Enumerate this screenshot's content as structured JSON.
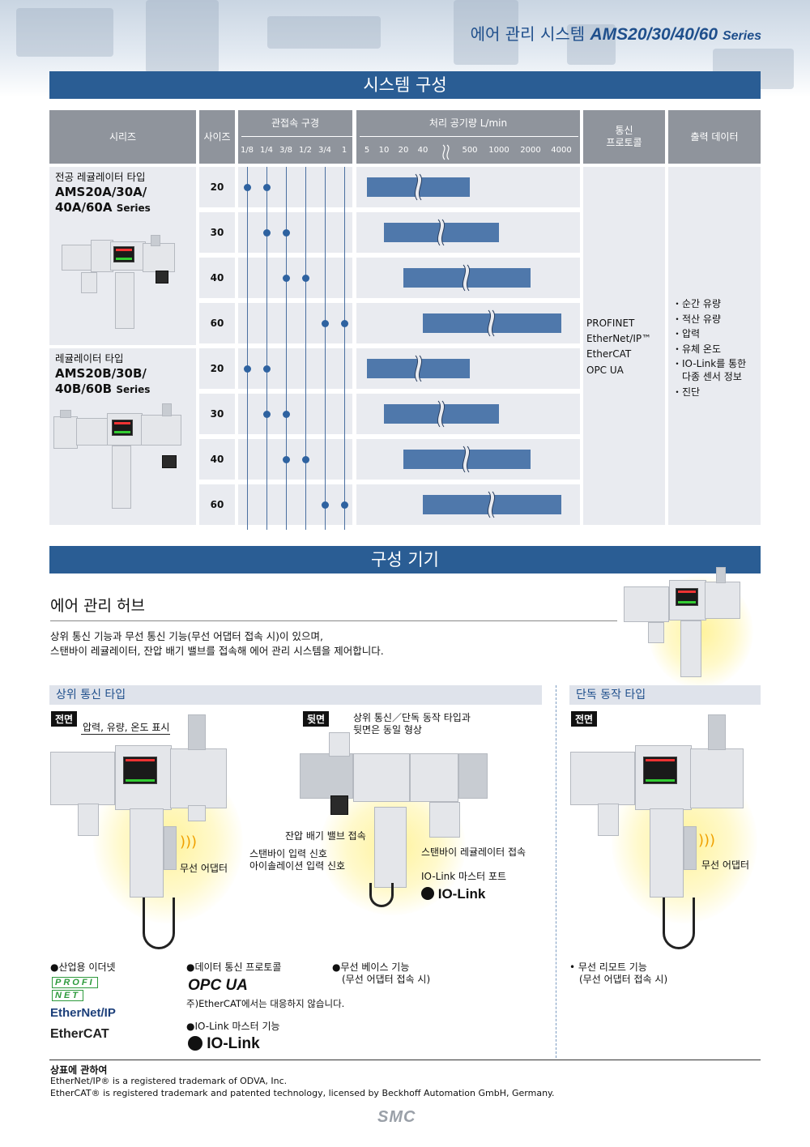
{
  "header": {
    "title_kr": "에어 관리 시스템",
    "title_series": "AMS20/30/40/60",
    "title_suffix": "Series"
  },
  "section1": {
    "title": "시스템 구성"
  },
  "table": {
    "col_series": "시리즈",
    "col_size": "사이즈",
    "col_port": "관접속 구경",
    "port_ticks": [
      "1/8",
      "1/4",
      "3/8",
      "1/2",
      "3/4",
      "1"
    ],
    "col_flow": "처리 공기량 L/min",
    "flow_ticks": [
      "5",
      "10",
      "20",
      "40",
      "500",
      "1000",
      "2000",
      "4000"
    ],
    "col_protocol_l1": "통신",
    "col_protocol_l2": "프로토콜",
    "col_output": "출력 데이터",
    "group_a": {
      "line1": "전공 레귤레이터 타입",
      "line2": "AMS20A/30A/",
      "line3": "40A/60A",
      "suffix": "Series"
    },
    "group_b": {
      "line1": "레귤레이터 타입",
      "line2": "AMS20B/30B/",
      "line3": "40B/60B",
      "suffix": "Series"
    },
    "rows": [
      {
        "size": "20",
        "ports": [
          0,
          1
        ],
        "flow": [
          0,
          5
        ]
      },
      {
        "size": "30",
        "ports": [
          1,
          2
        ],
        "flow": [
          1,
          6
        ]
      },
      {
        "size": "40",
        "ports": [
          2,
          3
        ],
        "flow": [
          2,
          7
        ]
      },
      {
        "size": "60",
        "ports": [
          4,
          5
        ],
        "flow": [
          3,
          8
        ]
      },
      {
        "size": "20",
        "ports": [
          0,
          1
        ],
        "flow": [
          0,
          5
        ]
      },
      {
        "size": "30",
        "ports": [
          1,
          2
        ],
        "flow": [
          1,
          6
        ]
      },
      {
        "size": "40",
        "ports": [
          2,
          3
        ],
        "flow": [
          2,
          7
        ]
      },
      {
        "size": "60",
        "ports": [
          4,
          5
        ],
        "flow": [
          3,
          8
        ]
      }
    ],
    "protocols": [
      "PROFINET",
      "EtherNet/IP™",
      "EtherCAT",
      "OPC UA"
    ],
    "outputs": [
      "순간 유량",
      "적산 유량",
      "압력",
      "유체 온도",
      "IO-Link를 통한",
      "다종 센서 정보",
      "진단"
    ]
  },
  "section2": {
    "title": "구성 기기"
  },
  "hub": {
    "title": "에어 관리 허브",
    "desc1": "상위 통신 기능과 무선 통신 기능(무선 어댑터 접속 시)이 있으며,",
    "desc2": "스탠바이 레귤레이터, 잔압 배기 밸브를 접속해 에어 관리 시스템을 제어합니다."
  },
  "upper": {
    "heading": "상위 통신 타입",
    "front_tag": "전면",
    "back_tag": "뒷면",
    "label_display": "압력, 유량, 온도 표시",
    "label_wireless": "무선 어댑터",
    "back_note1": "상위 통신／단독 동작 타입과",
    "back_note2": "뒷면은 동일 형상",
    "label_residual": "잔압 배기 밸브 접속",
    "label_standby_in": "스탠바이 입력 신호",
    "label_isolation": "아이솔레이션 입력 신호",
    "label_standby_reg": "스탠바이 레귤레이터 접속",
    "label_iolink_port": "IO-Link 마스터 포트",
    "iolink_logo": "IO-Link"
  },
  "standalone": {
    "heading": "단독 동작 타입",
    "front_tag": "전면",
    "label_wireless": "무선 어댑터",
    "feature1": "무선 리모트 기능",
    "feature2": "(무선 어댑터 접속 시)"
  },
  "features": {
    "ethernet": "●산업용 이더넷",
    "profinet_l1": "PROFI",
    "profinet_l2": "NET",
    "ethernetip": "EtherNet/IP",
    "ethercat": "EtherCAT",
    "data_protocol": "●데이터 통신 프로토콜",
    "opcua": "OPC UA",
    "note": "주)EtherCAT에서는 대응하지 않습니다.",
    "iolink_func": "●IO-Link 마스터 기능",
    "iolink_logo": "IO-Link",
    "wireless_base1": "●무선 베이스 기능",
    "wireless_base2": "(무선 어댑터 접속 시)"
  },
  "footer": {
    "title": "상표에 관하여",
    "line1": "EtherNet/IP® is a registered trademark of ODVA, Inc.",
    "line2": "EtherCAT® is registered trademark and patented technology, licensed by Beckhoff Automation GmbH, Germany.",
    "brand": "SMC"
  },
  "colors": {
    "accent": "#2a5d94",
    "bar": "#4f78ab",
    "dot": "#2e62a0",
    "header_gray": "#8f949c"
  }
}
